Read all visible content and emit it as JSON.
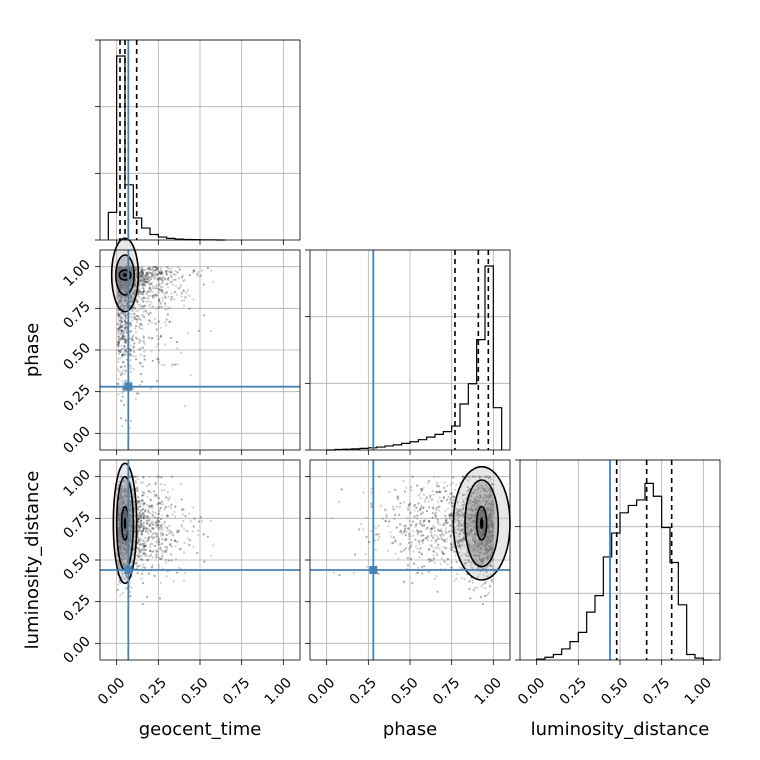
{
  "colors": {
    "truth": "#4682b4",
    "hist": "#000000",
    "grid": "#b0b0b0",
    "scatter": "#444444"
  },
  "chart_data": {
    "type": "corner",
    "parameters": [
      "geocent_time",
      "phase",
      "luminosity_distance"
    ],
    "axis_range": [
      -0.1,
      1.1
    ],
    "tick_values": [
      0.0,
      0.25,
      0.5,
      0.75,
      1.0
    ],
    "tick_labels": [
      "0.00",
      "0.25",
      "0.50",
      "0.75",
      "1.00"
    ],
    "grid": true,
    "truths": {
      "geocent_time": 0.07,
      "phase": 0.28,
      "luminosity_distance": 0.44
    },
    "quantiles": {
      "geocent_time": [
        0.02,
        0.05,
        0.12
      ],
      "phase": [
        0.77,
        0.91,
        0.97
      ],
      "luminosity_distance": [
        0.48,
        0.66,
        0.81
      ]
    },
    "histograms": {
      "geocent_time": {
        "bins": [
          -0.05,
          0.0,
          0.05,
          0.1,
          0.15,
          0.2,
          0.25,
          0.3,
          0.35,
          0.4,
          0.45,
          0.5,
          0.55,
          0.6,
          0.65
        ],
        "counts": [
          0.15,
          1.0,
          0.3,
          0.12,
          0.065,
          0.03,
          0.016,
          0.009,
          0.005,
          0.003,
          0.002,
          0.001,
          0.001,
          0.0
        ]
      },
      "phase": {
        "bins": [
          0.0,
          0.05,
          0.1,
          0.15,
          0.2,
          0.25,
          0.3,
          0.35,
          0.4,
          0.45,
          0.5,
          0.55,
          0.6,
          0.65,
          0.7,
          0.75,
          0.8,
          0.85,
          0.9,
          0.95,
          1.0,
          1.05
        ],
        "counts": [
          0.0,
          0.003,
          0.004,
          0.006,
          0.009,
          0.012,
          0.016,
          0.022,
          0.028,
          0.036,
          0.045,
          0.056,
          0.07,
          0.085,
          0.1,
          0.13,
          0.25,
          0.36,
          0.6,
          1.0,
          0.23
        ]
      },
      "luminosity_distance": {
        "bins": [
          0.0,
          0.05,
          0.1,
          0.15,
          0.2,
          0.25,
          0.3,
          0.35,
          0.4,
          0.45,
          0.5,
          0.55,
          0.6,
          0.65,
          0.7,
          0.75,
          0.8,
          0.85,
          0.9,
          0.95,
          1.0,
          1.05
        ],
        "counts": [
          0.005,
          0.015,
          0.03,
          0.06,
          0.1,
          0.15,
          0.26,
          0.35,
          0.56,
          0.69,
          0.8,
          0.84,
          0.87,
          0.96,
          0.89,
          0.72,
          0.53,
          0.3,
          0.03,
          0.01,
          0.0
        ]
      }
    },
    "joint_peaks": {
      "phase_vs_geocent_time": {
        "x": 0.05,
        "y": 0.95
      },
      "luminosity_distance_vs_geocent_time": {
        "x": 0.05,
        "y": 0.72
      },
      "luminosity_distance_vs_phase": {
        "x": 0.93,
        "y": 0.72
      }
    }
  }
}
